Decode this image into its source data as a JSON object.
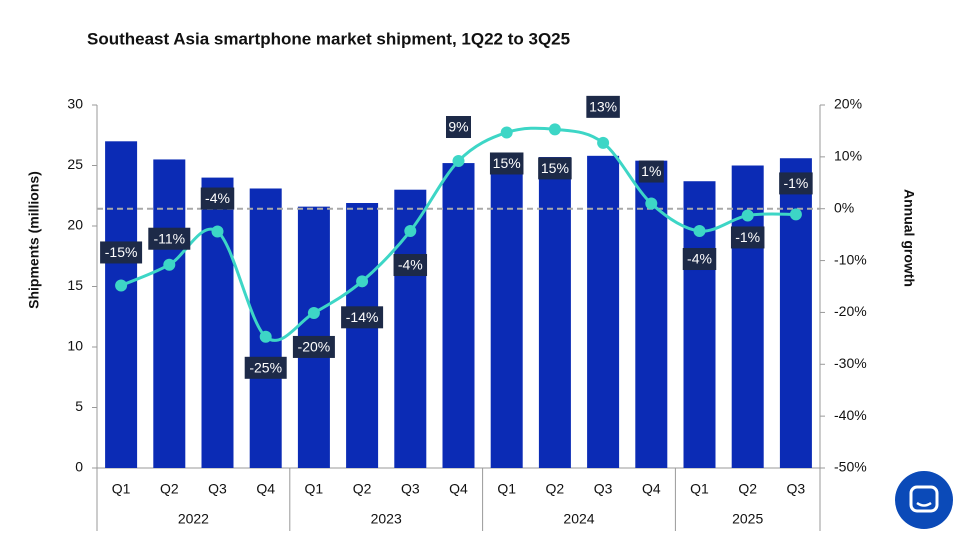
{
  "chart_data": {
    "type": "bar",
    "title": "Southeast Asia smartphone market shipment, 1Q22 to 3Q25",
    "y_label": "Shipments (millions)",
    "y2_label": "Annual growth",
    "category_groups": [
      {
        "label": "2022",
        "categories": [
          "Q1",
          "Q2",
          "Q3",
          "Q4"
        ]
      },
      {
        "label": "2023",
        "categories": [
          "Q1",
          "Q2",
          "Q3",
          "Q4"
        ]
      },
      {
        "label": "2024",
        "categories": [
          "Q1",
          "Q2",
          "Q3",
          "Q4"
        ]
      },
      {
        "label": "2025",
        "categories": [
          "Q1",
          "Q2",
          "Q3"
        ]
      }
    ],
    "ylim": [
      0,
      30
    ],
    "yticks": [
      0,
      5,
      10,
      15,
      20,
      25,
      30
    ],
    "y2lim": [
      -50,
      20
    ],
    "y2ticks": [
      {
        "value": -50,
        "label": "-50%"
      },
      {
        "value": -40,
        "label": "-40%"
      },
      {
        "value": -30,
        "label": "-30%"
      },
      {
        "value": -20,
        "label": "-20%"
      },
      {
        "value": -10,
        "label": "-10%"
      },
      {
        "value": 0,
        "label": "0%"
      },
      {
        "value": 10,
        "label": "10%"
      },
      {
        "value": 20,
        "label": "20%"
      }
    ],
    "series": [
      {
        "type": "bar",
        "color": "#0b2bb5",
        "values": [
          27.0,
          25.5,
          24.0,
          23.1,
          21.6,
          21.9,
          23.0,
          25.2,
          25.9,
          25.7,
          25.8,
          25.4,
          23.7,
          25.0,
          25.6
        ]
      },
      {
        "type": "line",
        "axis": "y2",
        "color": "#3dd6c6",
        "values": [
          -14.8,
          -10.8,
          -4.4,
          -24.7,
          -20.1,
          -14.0,
          -4.3,
          9.2,
          14.7,
          15.3,
          12.7,
          1.0,
          -4.3,
          -1.3,
          -1.1
        ],
        "value_labels": [
          "-15%",
          "-11%",
          "-4%",
          "-25%",
          "-20%",
          "-14%",
          "-4%",
          "9%",
          "15%",
          "15%",
          "13%",
          "1%",
          "-4%",
          "-1%",
          "-1%"
        ]
      }
    ]
  }
}
